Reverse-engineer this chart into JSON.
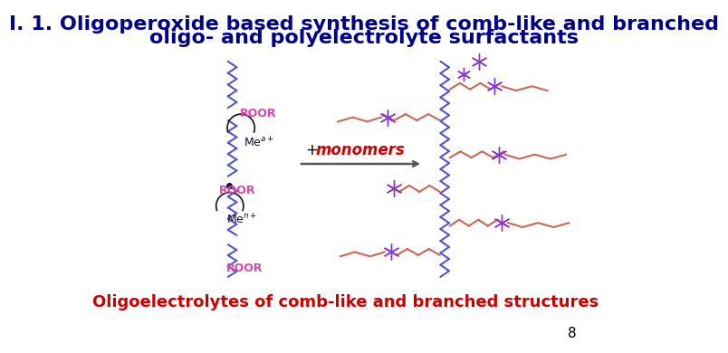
{
  "title_line1": "I. 1. Oligoperoxide based synthesis of comb-like and branched",
  "title_line2": "oligo- and polyelectrolyte surfactants",
  "title_color": "#00008B",
  "title_fontsize": 16,
  "subtitle": "Oligoelectrolytes of comb-like and branched structures",
  "subtitle_color": "#CC0000",
  "subtitle_fontsize": 13,
  "page_number": "8",
  "page_color": "#000000",
  "background_color": "#FFFFFF",
  "chain_color": "#5555CC",
  "roor_color": "#DD44AA",
  "me_color": "#111133",
  "arrow_color": "#555555",
  "monomer_color": "#CC0000",
  "monomer_plus_color": "#000000",
  "side_chain_color": "#CC6655",
  "star_color": "#8833CC"
}
